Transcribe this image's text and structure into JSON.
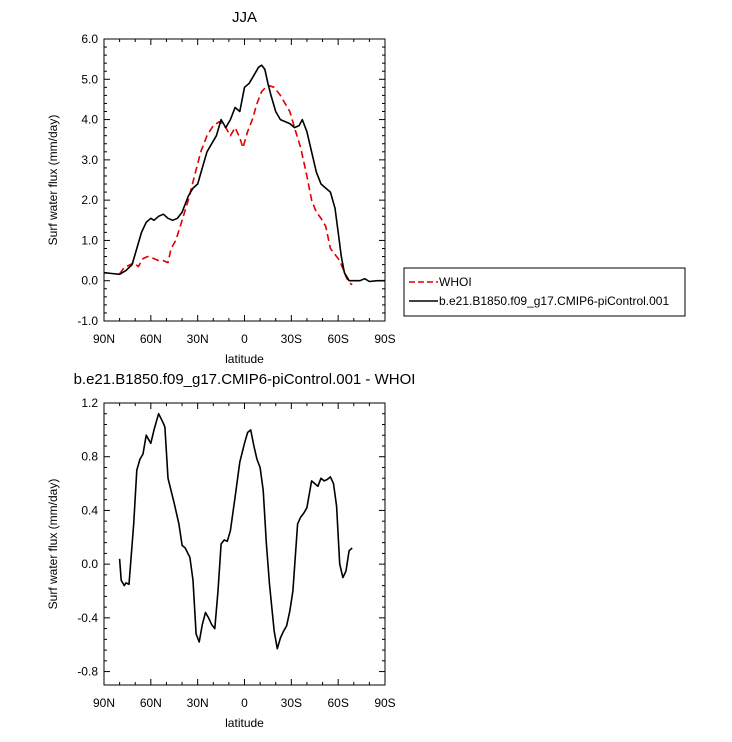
{
  "chart_data": [
    {
      "type": "line",
      "title": "JJA",
      "xlabel": "latitude",
      "ylabel": "Surf water flux (mm/day)",
      "xlim": [
        -90,
        90
      ],
      "ylim": [
        -1.0,
        6.0
      ],
      "xticks": [
        -90,
        -60,
        -30,
        0,
        30,
        60,
        90
      ],
      "xtick_labels": [
        "90N",
        "60N",
        "30N",
        "0",
        "30S",
        "60S",
        "90S"
      ],
      "yticks": [
        -1.0,
        0.0,
        1.0,
        2.0,
        3.0,
        4.0,
        5.0,
        6.0
      ],
      "ytick_labels": [
        "-1.0",
        "0.0",
        "1.0",
        "2.0",
        "3.0",
        "4.0",
        "5.0",
        "6.0"
      ],
      "legend_position": "outside-right",
      "series": [
        {
          "name": "WHOI",
          "color": "#e00000",
          "dash": true,
          "points": [
            [
              -80,
              0.17
            ],
            [
              -77,
              0.33
            ],
            [
              -73,
              0.4
            ],
            [
              -71,
              0.45
            ],
            [
              -68,
              0.35
            ],
            [
              -65,
              0.55
            ],
            [
              -62,
              0.6
            ],
            [
              -58,
              0.55
            ],
            [
              -55,
              0.5
            ],
            [
              -52,
              0.5
            ],
            [
              -49,
              0.45
            ],
            [
              -47,
              0.8
            ],
            [
              -44,
              1.0
            ],
            [
              -40,
              1.5
            ],
            [
              -36,
              2.0
            ],
            [
              -32,
              2.6
            ],
            [
              -28,
              3.2
            ],
            [
              -24,
              3.6
            ],
            [
              -20,
              3.85
            ],
            [
              -16,
              3.95
            ],
            [
              -12,
              3.8
            ],
            [
              -9,
              3.6
            ],
            [
              -6,
              3.8
            ],
            [
              -3,
              3.55
            ],
            [
              -1,
              3.3
            ],
            [
              2,
              3.7
            ],
            [
              5,
              4.0
            ],
            [
              8,
              4.4
            ],
            [
              11,
              4.7
            ],
            [
              15,
              4.85
            ],
            [
              19,
              4.8
            ],
            [
              23,
              4.6
            ],
            [
              26,
              4.4
            ],
            [
              29,
              4.2
            ],
            [
              32,
              3.8
            ],
            [
              36,
              3.3
            ],
            [
              40,
              2.6
            ],
            [
              43,
              2.0
            ],
            [
              46,
              1.7
            ],
            [
              49,
              1.55
            ],
            [
              52,
              1.35
            ],
            [
              55,
              0.8
            ],
            [
              58,
              0.65
            ],
            [
              61,
              0.5
            ],
            [
              63,
              0.3
            ],
            [
              65,
              0.1
            ],
            [
              67,
              -0.05
            ],
            [
              69,
              -0.1
            ]
          ]
        },
        {
          "name": "b.e21.B1850.f09_g17.CMIP6-piControl.001",
          "color": "#000000",
          "dash": false,
          "points": [
            [
              -90,
              0.2
            ],
            [
              -85,
              0.18
            ],
            [
              -80,
              0.16
            ],
            [
              -76,
              0.25
            ],
            [
              -72,
              0.4
            ],
            [
              -69,
              0.8
            ],
            [
              -66,
              1.2
            ],
            [
              -63,
              1.45
            ],
            [
              -60,
              1.55
            ],
            [
              -58,
              1.5
            ],
            [
              -55,
              1.6
            ],
            [
              -52,
              1.65
            ],
            [
              -49,
              1.55
            ],
            [
              -46,
              1.5
            ],
            [
              -43,
              1.55
            ],
            [
              -40,
              1.7
            ],
            [
              -36,
              2.1
            ],
            [
              -33,
              2.3
            ],
            [
              -30,
              2.4
            ],
            [
              -27,
              2.8
            ],
            [
              -24,
              3.2
            ],
            [
              -21,
              3.4
            ],
            [
              -18,
              3.6
            ],
            [
              -15,
              4.0
            ],
            [
              -12,
              3.8
            ],
            [
              -9,
              4.0
            ],
            [
              -6,
              4.3
            ],
            [
              -3,
              4.2
            ],
            [
              0,
              4.8
            ],
            [
              3,
              4.9
            ],
            [
              6,
              5.1
            ],
            [
              9,
              5.3
            ],
            [
              11,
              5.35
            ],
            [
              13,
              5.25
            ],
            [
              15,
              4.9
            ],
            [
              17,
              4.6
            ],
            [
              20,
              4.2
            ],
            [
              23,
              4.0
            ],
            [
              26,
              3.95
            ],
            [
              29,
              3.9
            ],
            [
              32,
              3.8
            ],
            [
              35,
              3.85
            ],
            [
              37,
              4.0
            ],
            [
              40,
              3.7
            ],
            [
              43,
              3.2
            ],
            [
              46,
              2.7
            ],
            [
              49,
              2.4
            ],
            [
              52,
              2.3
            ],
            [
              55,
              2.2
            ],
            [
              58,
              1.8
            ],
            [
              60,
              1.2
            ],
            [
              62,
              0.6
            ],
            [
              64,
              0.2
            ],
            [
              67,
              0.0
            ],
            [
              70,
              0.0
            ],
            [
              74,
              0.0
            ],
            [
              77,
              0.05
            ],
            [
              80,
              -0.02
            ],
            [
              85,
              0.0
            ],
            [
              90,
              0.0
            ]
          ]
        }
      ]
    },
    {
      "type": "line",
      "title": "b.e21.B1850.f09_g17.CMIP6-piControl.001 - WHOI",
      "xlabel": "latitude",
      "ylabel": "Surf water flux (mm/day)",
      "xlim": [
        -90,
        90
      ],
      "ylim": [
        -0.9,
        1.2
      ],
      "xticks": [
        -90,
        -60,
        -30,
        0,
        30,
        60,
        90
      ],
      "xtick_labels": [
        "90N",
        "60N",
        "30N",
        "0",
        "30S",
        "60S",
        "90S"
      ],
      "yticks": [
        -0.8,
        -0.4,
        0.0,
        0.4,
        0.8,
        1.2
      ],
      "ytick_labels": [
        "-0.8",
        "-0.4",
        "0.0",
        "0.4",
        "0.8",
        "1.2"
      ],
      "series": [
        {
          "color": "#000000",
          "dash": false,
          "points": [
            [
              -80,
              0.04
            ],
            [
              -79,
              -0.12
            ],
            [
              -77,
              -0.16
            ],
            [
              -76,
              -0.14
            ],
            [
              -74,
              -0.15
            ],
            [
              -71,
              0.3
            ],
            [
              -69,
              0.7
            ],
            [
              -67,
              0.78
            ],
            [
              -65,
              0.82
            ],
            [
              -63,
              0.96
            ],
            [
              -60,
              0.9
            ],
            [
              -58,
              1.0
            ],
            [
              -55,
              1.12
            ],
            [
              -52,
              1.05
            ],
            [
              -51,
              1.02
            ],
            [
              -49,
              0.64
            ],
            [
              -45,
              0.45
            ],
            [
              -42,
              0.3
            ],
            [
              -40,
              0.14
            ],
            [
              -38,
              0.12
            ],
            [
              -35,
              0.05
            ],
            [
              -33,
              -0.12
            ],
            [
              -31,
              -0.52
            ],
            [
              -29,
              -0.58
            ],
            [
              -27,
              -0.45
            ],
            [
              -25,
              -0.36
            ],
            [
              -23,
              -0.4
            ],
            [
              -21,
              -0.45
            ],
            [
              -19,
              -0.48
            ],
            [
              -17,
              -0.2
            ],
            [
              -15,
              0.15
            ],
            [
              -13,
              0.18
            ],
            [
              -11,
              0.17
            ],
            [
              -9,
              0.25
            ],
            [
              -6,
              0.5
            ],
            [
              -3,
              0.76
            ],
            [
              0,
              0.9
            ],
            [
              2,
              0.98
            ],
            [
              4,
              1.0
            ],
            [
              6,
              0.88
            ],
            [
              8,
              0.78
            ],
            [
              10,
              0.72
            ],
            [
              12,
              0.55
            ],
            [
              14,
              0.15
            ],
            [
              16,
              -0.15
            ],
            [
              19,
              -0.5
            ],
            [
              21,
              -0.63
            ],
            [
              23,
              -0.55
            ],
            [
              25,
              -0.5
            ],
            [
              27,
              -0.46
            ],
            [
              29,
              -0.35
            ],
            [
              31,
              -0.2
            ],
            [
              34,
              0.3
            ],
            [
              36,
              0.35
            ],
            [
              38,
              0.38
            ],
            [
              40,
              0.42
            ],
            [
              43,
              0.62
            ],
            [
              45,
              0.6
            ],
            [
              47,
              0.58
            ],
            [
              49,
              0.64
            ],
            [
              51,
              0.62
            ],
            [
              53,
              0.63
            ],
            [
              55,
              0.65
            ],
            [
              57,
              0.6
            ],
            [
              59,
              0.43
            ],
            [
              61,
              0.0
            ],
            [
              63,
              -0.1
            ],
            [
              65,
              -0.05
            ],
            [
              67,
              0.1
            ],
            [
              69,
              0.12
            ]
          ]
        }
      ]
    }
  ],
  "legend": {
    "entries": [
      {
        "label": "WHOI",
        "color": "#e00000",
        "dash": true
      },
      {
        "label": "b.e21.B1850.f09_g17.CMIP6-piControl.001",
        "color": "#000000",
        "dash": false
      }
    ]
  }
}
